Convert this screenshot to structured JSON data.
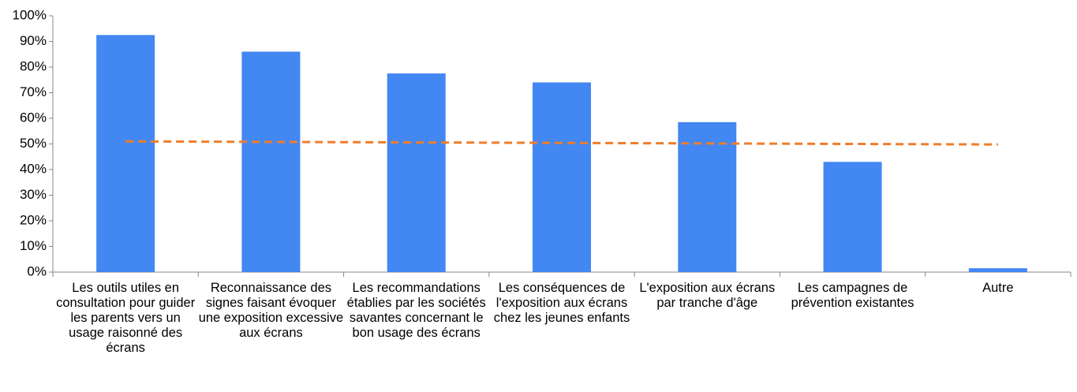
{
  "chart_data": {
    "type": "bar",
    "categories": [
      "Les outils utiles en consultation pour guider les parents vers un usage raisonné des écrans",
      "Reconnaissance des signes faisant évoquer une exposition excessive aux écrans",
      "Les recommandations établies par les sociétés savantes concernant le bon usage des écrans",
      "Les conséquences de l'exposition aux écrans chez les jeunes enfants",
      "L'exposition aux écrans par tranche d'âge",
      "Les campagnes de prévention existantes",
      "Autre"
    ],
    "series": [
      {
        "type": "bar",
        "color": "#4287f2",
        "values": [
          92.5,
          86,
          77.5,
          74,
          58.5,
          43,
          1.5
        ]
      },
      {
        "type": "line",
        "color": "#f07d2a",
        "dashed": true,
        "values": [
          51,
          50.8,
          50.6,
          50.4,
          50.2,
          50,
          49.8
        ]
      }
    ],
    "ylim": [
      0,
      100
    ],
    "yticks": [
      {
        "value": 0,
        "label": "0%"
      },
      {
        "value": 10,
        "label": "10%"
      },
      {
        "value": 20,
        "label": "20%"
      },
      {
        "value": 30,
        "label": "30%"
      },
      {
        "value": 40,
        "label": "40%"
      },
      {
        "value": 50,
        "label": "50%"
      },
      {
        "value": 60,
        "label": "60%"
      },
      {
        "value": 70,
        "label": "70%"
      },
      {
        "value": 80,
        "label": "80%"
      },
      {
        "value": 90,
        "label": "90%"
      },
      {
        "value": 100,
        "label": "100%"
      }
    ],
    "grid": false
  }
}
